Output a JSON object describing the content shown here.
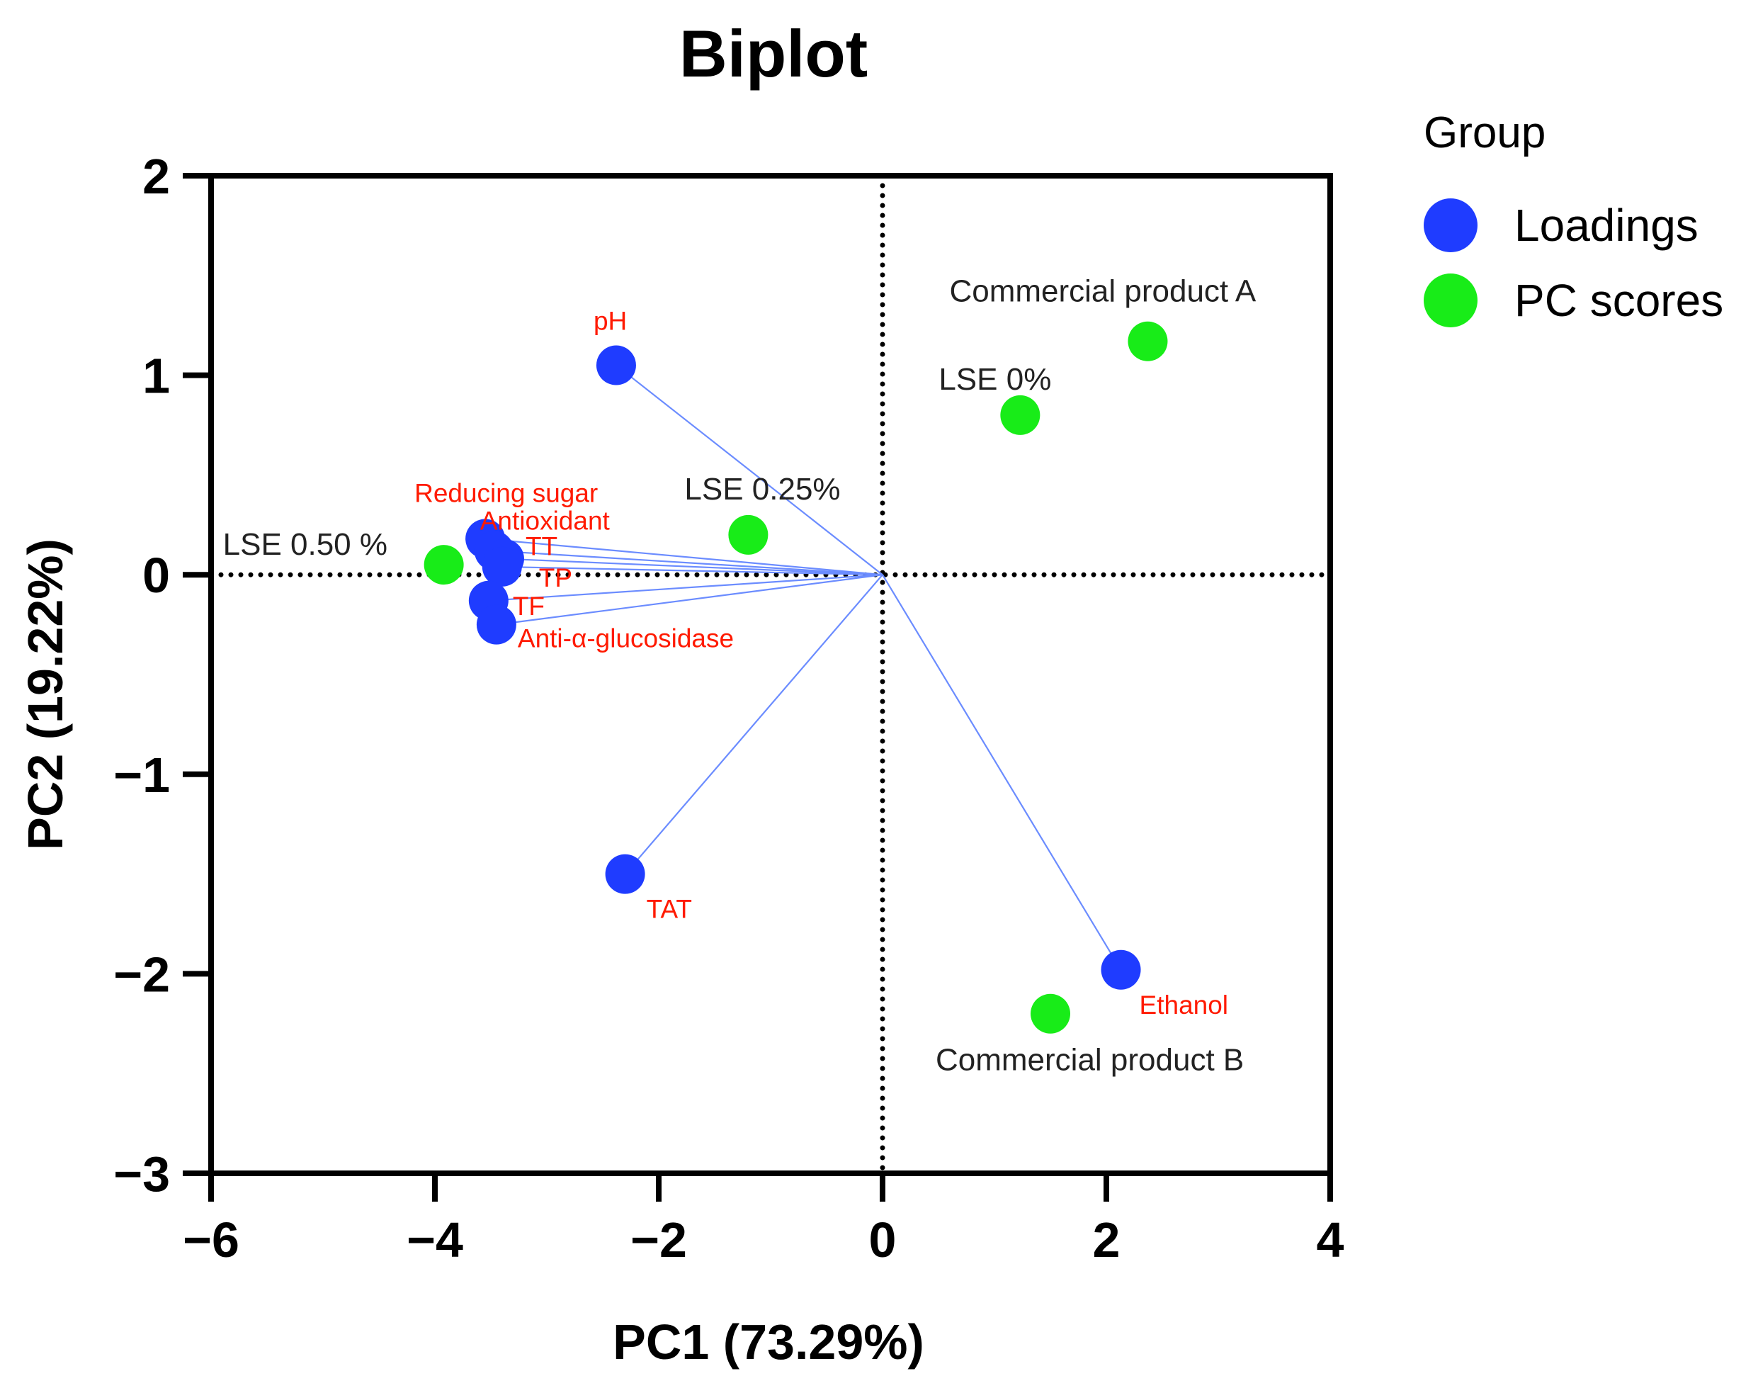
{
  "chart_data": {
    "type": "scatter",
    "title": "Biplot",
    "xlabel": "PC1 (73.29%)",
    "ylabel": "PC2 (19.22%)",
    "xlim": [
      -6,
      4
    ],
    "ylim": [
      -3,
      2
    ],
    "x_ticks": [
      -6,
      -4,
      -2,
      0,
      2,
      4
    ],
    "y_ticks": [
      -3,
      -2,
      -1,
      0,
      1,
      2
    ],
    "x_tick_labels": [
      "−6",
      "−4",
      "−2",
      "0",
      "2",
      "4"
    ],
    "y_tick_labels": [
      "−3",
      "−2",
      "−1",
      "0",
      "1",
      "2"
    ],
    "reference_lines": {
      "x": 0,
      "y": 0,
      "style": "dotted"
    },
    "grid": false,
    "legend": {
      "title": "Group",
      "placement": "right",
      "entries": [
        {
          "name": "Loadings",
          "color": "#1f3cff"
        },
        {
          "name": "PC scores",
          "color": "#18ec18"
        }
      ]
    },
    "series": [
      {
        "name": "Loadings",
        "color": "#1f3cff",
        "vector_color": "#6b8cff",
        "points": [
          {
            "label": "pH",
            "x": -2.38,
            "y": 1.05
          },
          {
            "label": "Reducing sugar",
            "x": -3.55,
            "y": 0.18
          },
          {
            "label": "Antioxidant",
            "x": -3.47,
            "y": 0.12
          },
          {
            "label": "TT",
            "x": -3.38,
            "y": 0.08
          },
          {
            "label": "TP",
            "x": -3.4,
            "y": 0.04
          },
          {
            "label": "TF",
            "x": -3.52,
            "y": -0.13
          },
          {
            "label": "Anti-α-glucosidase",
            "x": -3.45,
            "y": -0.25
          },
          {
            "label": "TAT",
            "x": -2.3,
            "y": -1.5
          },
          {
            "label": "Ethanol",
            "x": 2.13,
            "y": -1.98
          }
        ]
      },
      {
        "name": "PC scores",
        "color": "#18ec18",
        "points": [
          {
            "label": "Commercial product A",
            "x": 2.37,
            "y": 1.17
          },
          {
            "label": "LSE 0%",
            "x": 1.23,
            "y": 0.8
          },
          {
            "label": "LSE 0.25%",
            "x": -1.2,
            "y": 0.2
          },
          {
            "label": "LSE 0.50 %",
            "x": -3.92,
            "y": 0.05
          },
          {
            "label": "Commercial product B",
            "x": 1.5,
            "y": -2.2
          }
        ]
      }
    ]
  }
}
